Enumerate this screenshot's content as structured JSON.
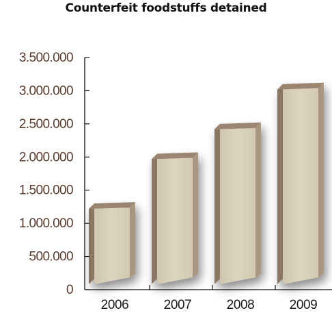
{
  "chart_data": {
    "type": "bar",
    "title": "Counterfeit foodstuffs detained",
    "xlabel": "",
    "ylabel": "",
    "categories": [
      "2006",
      "2007",
      "2008",
      "2009"
    ],
    "values": [
      1300000,
      2050000,
      2500000,
      3100000
    ],
    "ylim": [
      0,
      3500000
    ],
    "yticks": [
      "0",
      "500.000",
      "1.000.000",
      "1.500.000",
      "2.000.000",
      "2.500.000",
      "3.000.000",
      "3.500.000"
    ],
    "grid": false,
    "legend": "none",
    "colors": {
      "bar_front": "#d7cfb7",
      "bar_side": "#8b7663",
      "bar_top": "#9c8570",
      "axis": "#111111",
      "tick_label": "#5a3a2c"
    }
  }
}
